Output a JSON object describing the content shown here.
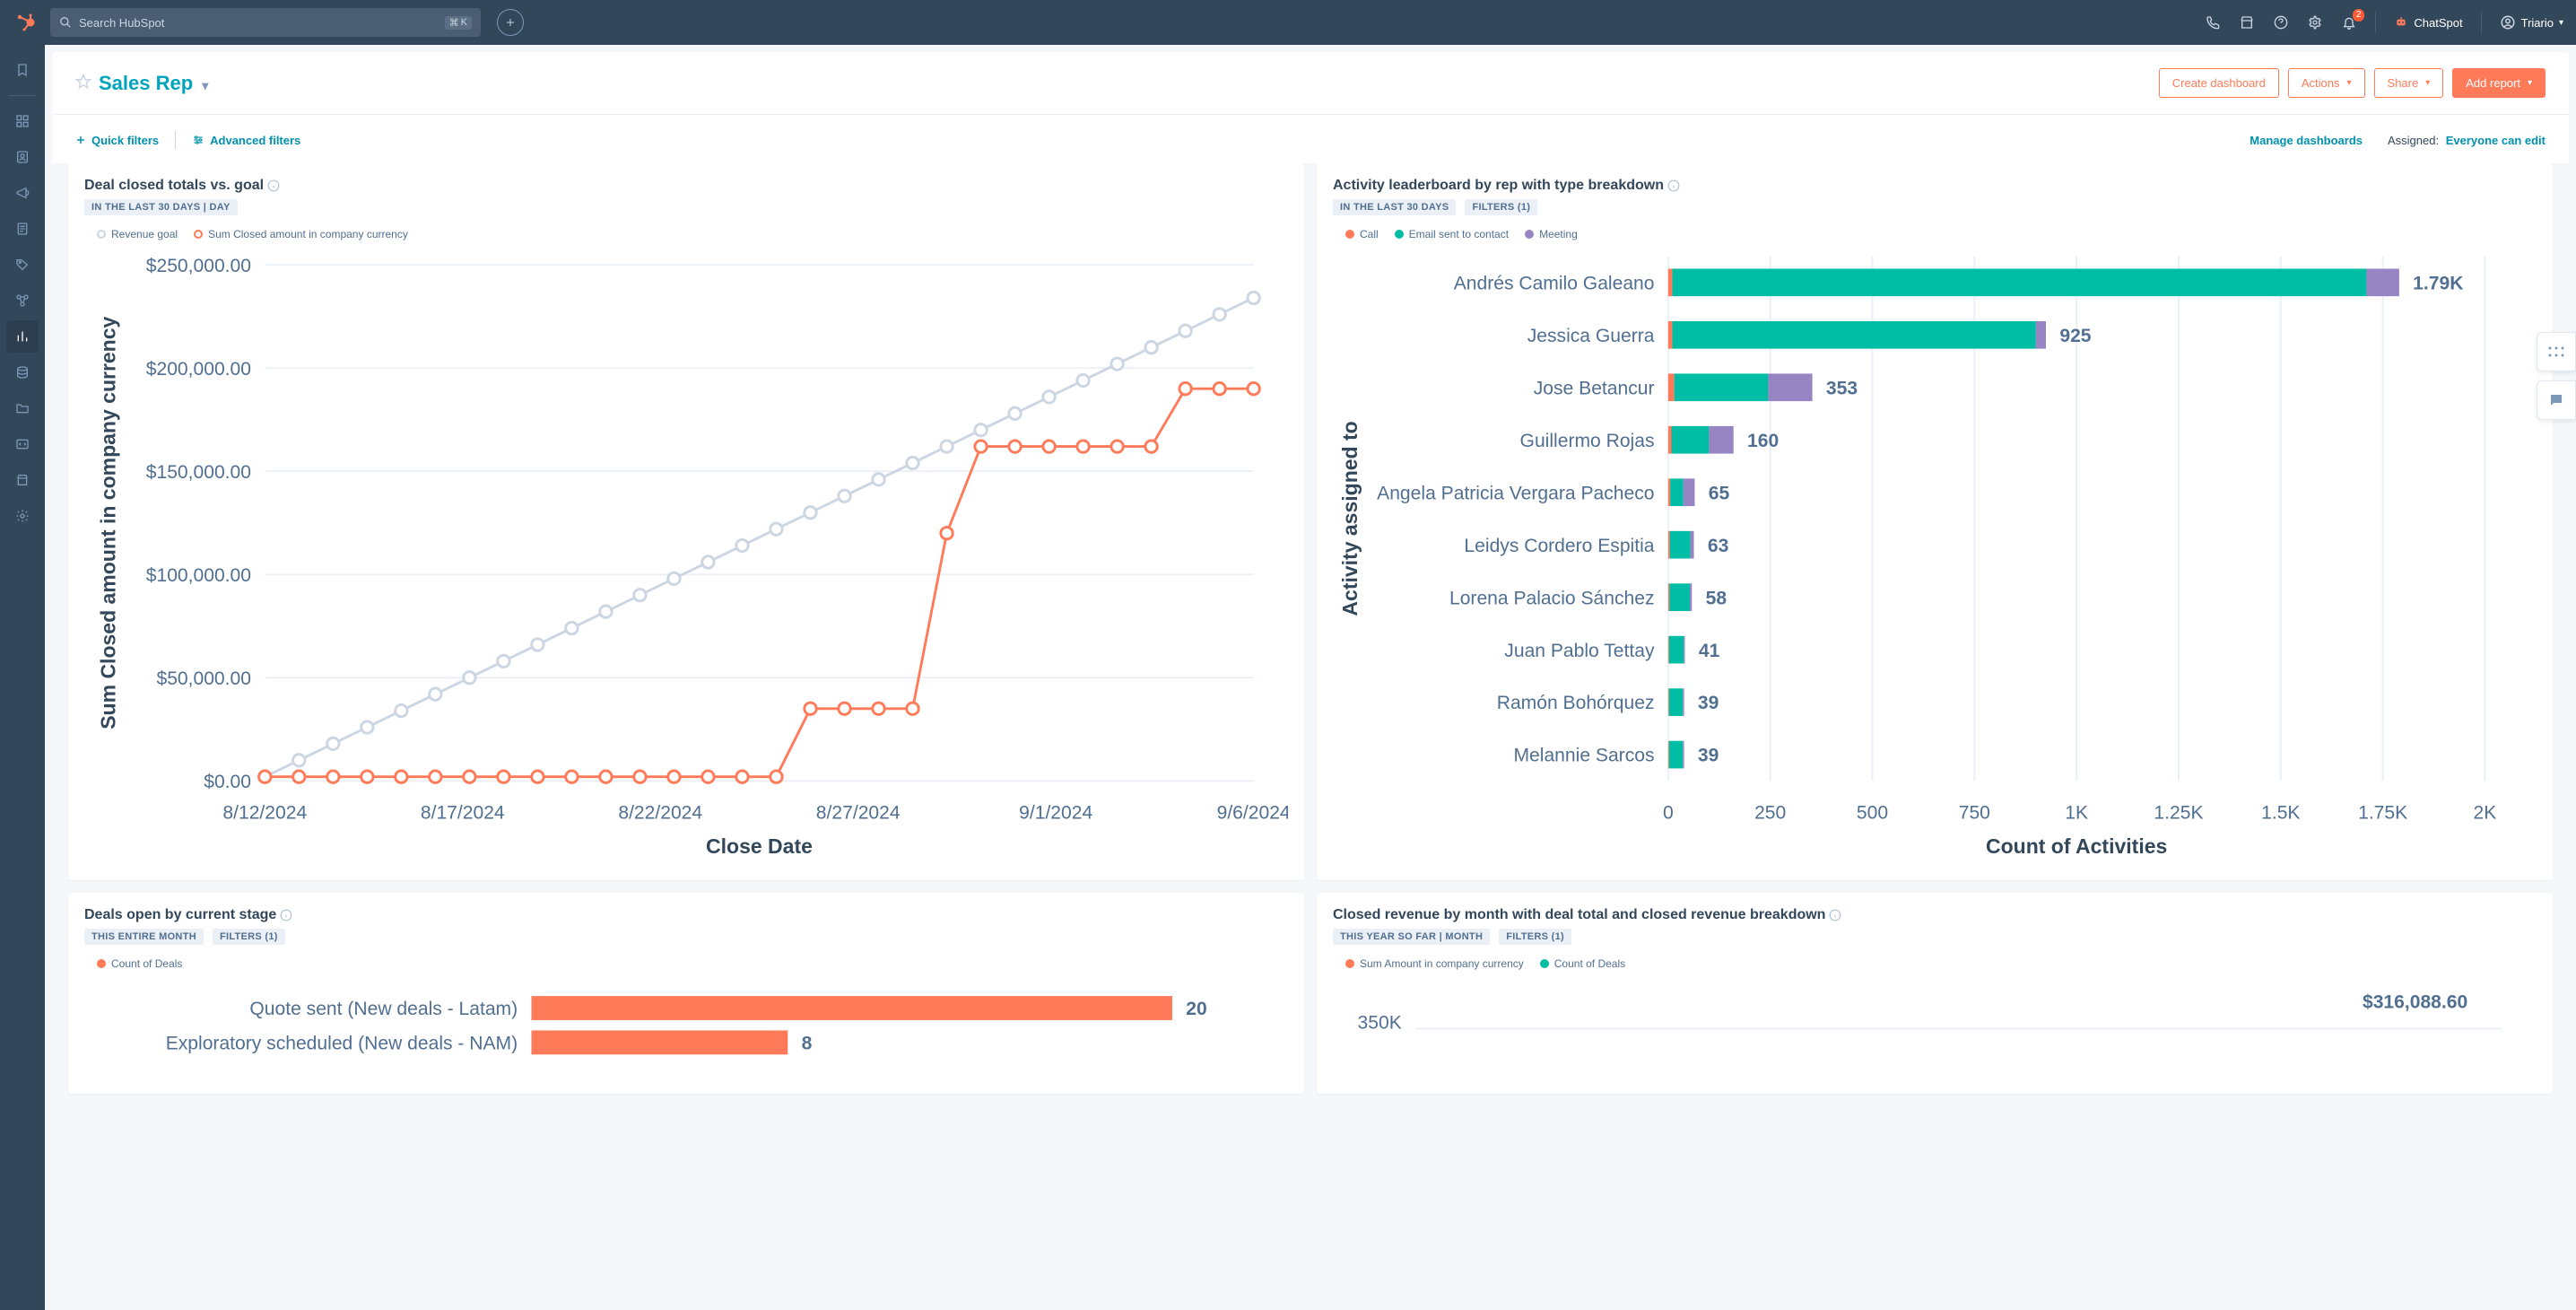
{
  "topnav": {
    "search_placeholder": "Search HubSpot",
    "kbd1": "⌘",
    "kbd2": "K",
    "notification_count": "2",
    "chatspot_label": "ChatSpot",
    "account_label": "Triario"
  },
  "page": {
    "title": "Sales Rep",
    "btn_create": "Create dashboard",
    "btn_actions": "Actions",
    "btn_share": "Share",
    "btn_add_report": "Add report"
  },
  "toolbar": {
    "quick_filters": "Quick filters",
    "advanced_filters": "Advanced filters",
    "manage": "Manage dashboards",
    "assigned_label": "Assigned:",
    "assigned_value": "Everyone can edit"
  },
  "colors": {
    "orange": "#ff7a59",
    "gray_line": "#cbd6e2",
    "teal": "#00bda5",
    "cyan": "#00a4bd",
    "purple": "#9784c2"
  },
  "card1": {
    "title": "Deal closed totals vs. goal",
    "pill": "IN THE LAST 30 DAYS | DAY",
    "legend1": "Revenue goal",
    "legend2": "Sum Closed amount in company currency",
    "ylabel": "Sum Closed amount in company currency",
    "xlabel": "Close Date",
    "yticks": [
      "$0.00",
      "$50,000.00",
      "$100,000.00",
      "$150,000.00",
      "$200,000.00",
      "$250,000.00"
    ],
    "xticks": [
      "8/12/2024",
      "8/17/2024",
      "8/22/2024",
      "8/27/2024",
      "9/1/2024",
      "9/6/2024"
    ],
    "ymax": 250000,
    "goal_series": [
      2000,
      10000,
      18000,
      26000,
      34000,
      42000,
      50000,
      58000,
      66000,
      74000,
      82000,
      90000,
      98000,
      106000,
      114000,
      122000,
      130000,
      138000,
      146000,
      154000,
      162000,
      170000,
      178000,
      186000,
      194000,
      202000,
      210000,
      218000,
      226000,
      234000
    ],
    "closed_series": [
      2000,
      2000,
      2000,
      2000,
      2000,
      2000,
      2000,
      2000,
      2000,
      2000,
      2000,
      2000,
      2000,
      2000,
      2000,
      2000,
      35000,
      35000,
      35000,
      35000,
      120000,
      162000,
      162000,
      162000,
      162000,
      162000,
      162000,
      190000,
      190000,
      190000
    ]
  },
  "card2": {
    "title": "Activity leaderboard by rep with type breakdown",
    "pill1": "IN THE LAST 30 DAYS",
    "pill2": "FILTERS (1)",
    "legend_call": "Call",
    "legend_email": "Email sent to contact",
    "legend_meeting": "Meeting",
    "ylabel": "Activity assigned to",
    "xlabel": "Count of Activities",
    "xticks": [
      "0",
      "250",
      "500",
      "750",
      "1K",
      "1.25K",
      "1.5K",
      "1.75K",
      "2K"
    ],
    "xmax": 2000,
    "rows": [
      {
        "name": "Andrés Camilo Galeano",
        "call": 10,
        "email": 1700,
        "meeting": 80,
        "label": "1.79K"
      },
      {
        "name": "Jessica Guerra",
        "call": 10,
        "email": 890,
        "meeting": 25,
        "label": "925"
      },
      {
        "name": "Jose Betancur",
        "call": 15,
        "email": 230,
        "meeting": 108,
        "label": "353"
      },
      {
        "name": "Guillermo Rojas",
        "call": 8,
        "email": 92,
        "meeting": 60,
        "label": "160"
      },
      {
        "name": "Angela Patricia Vergara Pacheco",
        "call": 5,
        "email": 32,
        "meeting": 28,
        "label": "65"
      },
      {
        "name": "Leidys Cordero Espitia",
        "call": 4,
        "email": 50,
        "meeting": 9,
        "label": "63"
      },
      {
        "name": "Lorena Palacio Sánchez",
        "call": 3,
        "email": 50,
        "meeting": 5,
        "label": "58"
      },
      {
        "name": "Juan Pablo Tettay",
        "call": 2,
        "email": 36,
        "meeting": 3,
        "label": "41"
      },
      {
        "name": "Ramón Bohórquez",
        "call": 2,
        "email": 34,
        "meeting": 3,
        "label": "39"
      },
      {
        "name": "Melannie Sarcos",
        "call": 2,
        "email": 34,
        "meeting": 3,
        "label": "39"
      }
    ]
  },
  "card3": {
    "title": "Deals open by current stage",
    "pill1": "THIS ENTIRE MONTH",
    "pill2": "FILTERS (1)",
    "legend": "Count of Deals",
    "xmax": 22,
    "rows": [
      {
        "name": "Quote sent (New deals - Latam)",
        "value": 20,
        "label": "20"
      },
      {
        "name": "Exploratory scheduled (New deals - NAM)",
        "value": 8,
        "label": "8"
      }
    ]
  },
  "card4": {
    "title": "Closed revenue by month with deal total and closed revenue breakdown",
    "pill1": "THIS YEAR SO FAR | MONTH",
    "pill2": "FILTERS (1)",
    "legend1": "Sum Amount in company currency",
    "legend2": "Count of Deals",
    "ytick": "350K",
    "value_label": "$316,088.60"
  }
}
